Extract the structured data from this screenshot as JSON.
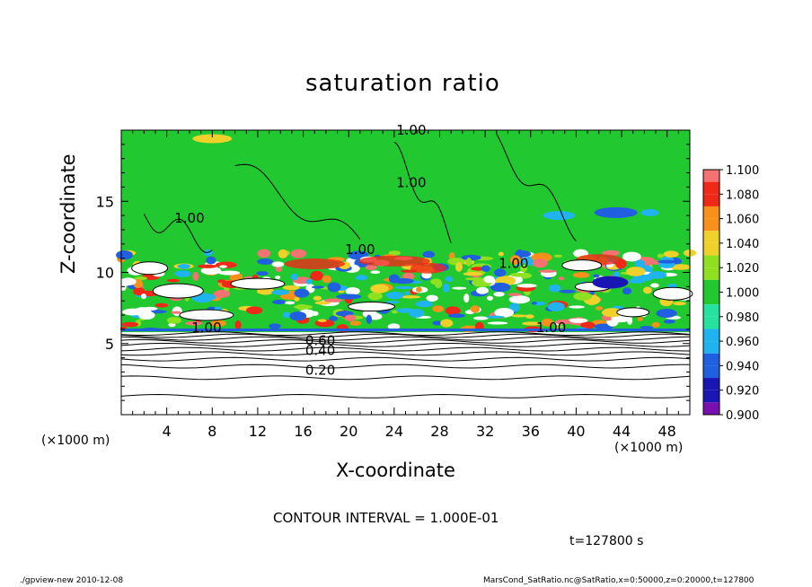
{
  "chart_data": {
    "type": "heatmap",
    "title": "saturation ratio",
    "xlabel": "X-coordinate",
    "ylabel": "Z-coordinate",
    "x_unit_label": "(×1000 m)",
    "x_ticks": [
      4,
      8,
      12,
      16,
      20,
      24,
      28,
      32,
      36,
      40,
      44,
      48
    ],
    "y_ticks": [
      5,
      10,
      15
    ],
    "xlim": [
      0,
      50
    ],
    "ylim": [
      0,
      20
    ],
    "colorbar": {
      "levels": [
        0.9,
        0.92,
        0.94,
        0.96,
        0.98,
        1.0,
        1.02,
        1.04,
        1.06,
        1.08,
        1.1
      ],
      "labels": [
        "0.900",
        "0.920",
        "0.940",
        "0.960",
        "0.980",
        "1.000",
        "1.020",
        "1.040",
        "1.060",
        "1.080",
        "1.100"
      ],
      "colors": [
        "#7a0fb0",
        "#1a16b4",
        "#1f5fe0",
        "#1fb4f0",
        "#24e2a0",
        "#22c830",
        "#8ee020",
        "#f0d02a",
        "#f8901c",
        "#f02818",
        "#f47272",
        "#f8b8b8"
      ]
    },
    "contour_labels": [
      "1.00",
      "1.00",
      "1.00",
      "1.00",
      "1.00",
      "1.00",
      "1.00",
      "0.60",
      "0.40",
      "0.20"
    ],
    "contour_interval": "CONTOUR INTERVAL = 1.000E-01",
    "time": "t=127800 s"
  },
  "footer": {
    "left": "./gpview-new   2010-12-08",
    "right": "MarsCond_SatRatio.nc@SatRatio,x=0:50000,z=0:20000,t=127800"
  },
  "colors": {
    "background": "#ffffff",
    "field": "#22c830"
  }
}
